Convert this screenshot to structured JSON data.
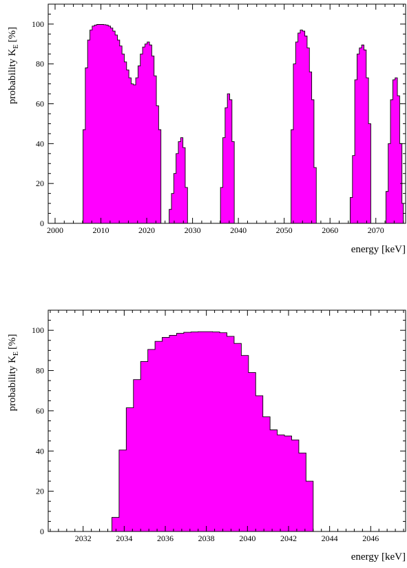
{
  "chart_data": [
    {
      "type": "area",
      "xlabel": "energy  [keV]",
      "ylabel_main": "probability K",
      "ylabel_sub": "E",
      "ylabel_unit": "[%]",
      "xlim": [
        1998.5,
        2076.5
      ],
      "ylim": [
        0,
        110
      ],
      "xticks": [
        2000,
        2010,
        2020,
        2030,
        2040,
        2050,
        2060,
        2070
      ],
      "yticks": [
        0,
        20,
        40,
        60,
        80,
        100
      ],
      "fill_color": "#ff00ff",
      "regions": [
        {
          "x": [
            2006.1,
            2006.6,
            2007.1,
            2007.6,
            2008.1,
            2008.6,
            2009.1,
            2009.6,
            2010.1,
            2010.6,
            2011.1,
            2011.6,
            2012.1,
            2012.6,
            2013.1,
            2013.6,
            2014.1,
            2014.6,
            2015.1,
            2015.6,
            2016.1,
            2016.6,
            2017.1,
            2017.6,
            2018.1,
            2018.6,
            2019.1,
            2019.6,
            2020.1,
            2020.6,
            2021.1,
            2021.6,
            2022.1,
            2022.6,
            2023.1
          ],
          "y": [
            47,
            78,
            92,
            97,
            99,
            99.5,
            99.8,
            99.8,
            99.8,
            99.7,
            99.5,
            99,
            98,
            96.5,
            94.5,
            92,
            89,
            85,
            81,
            77,
            73,
            70,
            69.5,
            73,
            79,
            85,
            88.5,
            90,
            91,
            89.5,
            84,
            74,
            59,
            47,
            0
          ]
        },
        {
          "x": [
            2024.9,
            2025.4,
            2025.9,
            2026.4,
            2026.9,
            2027.4,
            2027.9,
            2028.4,
            2028.9
          ],
          "y": [
            7,
            15,
            25,
            35,
            41,
            43,
            38,
            18,
            0
          ]
        },
        {
          "x": [
            2036.1,
            2036.6,
            2037.1,
            2037.6,
            2038.1,
            2038.6,
            2039.1
          ],
          "y": [
            18,
            43,
            58,
            65,
            62,
            41,
            0
          ]
        },
        {
          "x": [
            2051.5,
            2052.0,
            2052.5,
            2053.0,
            2053.5,
            2054.0,
            2054.5,
            2055.0,
            2055.5,
            2056.0,
            2056.5,
            2057.0
          ],
          "y": [
            47,
            80,
            91,
            95.5,
            97,
            96.5,
            94,
            88,
            76,
            62,
            28,
            0
          ]
        },
        {
          "x": [
            2064.4,
            2064.9,
            2065.4,
            2065.9,
            2066.4,
            2066.9,
            2067.4,
            2067.9,
            2068.4,
            2068.9
          ],
          "y": [
            13,
            34,
            72,
            85,
            88,
            89.5,
            87,
            73,
            50,
            0
          ]
        },
        {
          "x": [
            2072.2,
            2072.7,
            2073.2,
            2073.7,
            2074.2,
            2074.7,
            2075.2,
            2075.7,
            2076.0
          ],
          "y": [
            16,
            40,
            62,
            72,
            73,
            64,
            40,
            10,
            0
          ]
        }
      ]
    },
    {
      "type": "area",
      "xlabel": "energy  [keV]",
      "ylabel_main": "probability K",
      "ylabel_sub": "E",
      "ylabel_unit": "[%]",
      "xlim": [
        2030.3,
        2047.7
      ],
      "ylim": [
        0,
        110
      ],
      "xticks": [
        2032,
        2034,
        2036,
        2038,
        2040,
        2042,
        2044,
        2046
      ],
      "yticks": [
        0,
        20,
        40,
        60,
        80,
        100
      ],
      "fill_color": "#ff00ff",
      "regions": [
        {
          "x": [
            2033.4,
            2033.75,
            2034.1,
            2034.45,
            2034.8,
            2035.15,
            2035.5,
            2035.85,
            2036.2,
            2036.55,
            2036.9,
            2037.25,
            2037.6,
            2037.95,
            2038.3,
            2038.65,
            2039.0,
            2039.35,
            2039.7,
            2040.05,
            2040.4,
            2040.75,
            2041.1,
            2041.45,
            2041.8,
            2042.15,
            2042.5,
            2042.85,
            2043.2
          ],
          "y": [
            7,
            40.5,
            61.5,
            75.5,
            84.5,
            90.5,
            94.5,
            96.5,
            97.5,
            98.5,
            99,
            99.2,
            99.3,
            99.3,
            99.2,
            98.8,
            97,
            93.5,
            87.5,
            79,
            67.5,
            57,
            50.5,
            48,
            47.5,
            45.5,
            39,
            25,
            0
          ]
        }
      ]
    }
  ]
}
